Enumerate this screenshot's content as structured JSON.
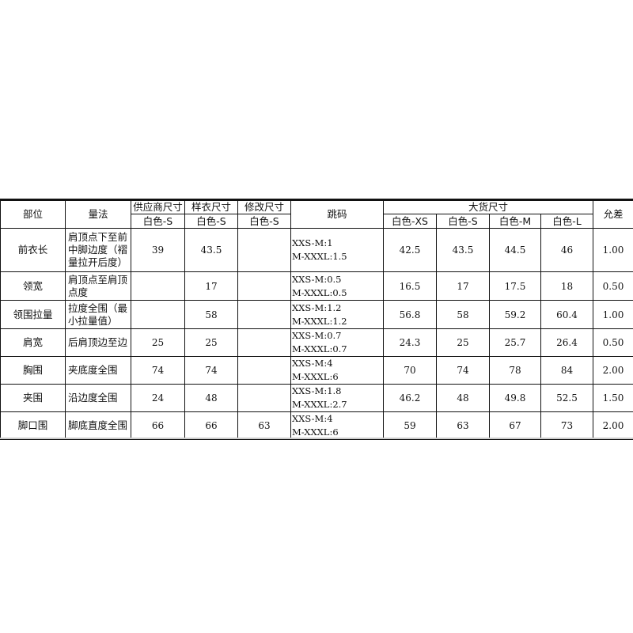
{
  "table": {
    "headers": {
      "part": "部位",
      "method": "量法",
      "supplier": "供应商尺寸",
      "sample": "样衣尺寸",
      "revised": "修改尺寸",
      "grading": "跳码",
      "bulk": "大货尺寸",
      "tolerance": "允差",
      "supplier_size": "白色-S",
      "sample_size": "白色-S",
      "revised_size": "白色-S",
      "bulk_sizes": [
        "白色-XS",
        "白色-S",
        "白色-M",
        "白色-L"
      ]
    },
    "rows": [
      {
        "part": "前衣长",
        "method": "肩顶点下至前中脚边度（褶量拉开后度）",
        "supplier": "39",
        "sample": "43.5",
        "revised": "",
        "grading": [
          "XXS-M:1",
          "M-XXXL:1.5"
        ],
        "bulk": [
          "42.5",
          "43.5",
          "44.5",
          "46"
        ],
        "tolerance": "1.00"
      },
      {
        "part": "领宽",
        "method": "肩顶点至肩顶点度",
        "supplier": "",
        "sample": "17",
        "revised": "",
        "grading": [
          "XXS-M:0.5",
          "M-XXXL:0.5"
        ],
        "bulk": [
          "16.5",
          "17",
          "17.5",
          "18"
        ],
        "tolerance": "0.50"
      },
      {
        "part": "领围拉量",
        "method": "拉度全围（最小拉量值）",
        "supplier": "",
        "sample": "58",
        "revised": "",
        "grading": [
          "XXS-M:1.2",
          "M-XXXL:1.2"
        ],
        "bulk": [
          "56.8",
          "58",
          "59.2",
          "60.4"
        ],
        "tolerance": "1.00"
      },
      {
        "part": "肩宽",
        "method": "后肩顶边至边",
        "supplier": "25",
        "sample": "25",
        "revised": "",
        "grading": [
          "XXS-M:0.7",
          "M-XXXL:0.7"
        ],
        "bulk": [
          "24.3",
          "25",
          "25.7",
          "26.4"
        ],
        "tolerance": "0.50"
      },
      {
        "part": "胸围",
        "method": "夹底度全围",
        "supplier": "74",
        "sample": "74",
        "revised": "",
        "grading": [
          "XXS-M:4",
          "M-XXXL:6"
        ],
        "bulk": [
          "70",
          "74",
          "78",
          "84"
        ],
        "tolerance": "2.00"
      },
      {
        "part": "夹围",
        "method": "沿边度全围",
        "supplier": "24",
        "sample": "48",
        "revised": "",
        "grading": [
          "XXS-M:1.8",
          "M-XXXL:2.7"
        ],
        "bulk": [
          "46.2",
          "48",
          "49.8",
          "52.5"
        ],
        "tolerance": "1.50"
      },
      {
        "part": "脚口围",
        "method": "脚底直度全围",
        "supplier": "66",
        "sample": "66",
        "revised": "63",
        "grading": [
          "XXS-M:4",
          "M-XXXL:6"
        ],
        "bulk": [
          "59",
          "63",
          "67",
          "73"
        ],
        "tolerance": "2.00"
      }
    ]
  }
}
